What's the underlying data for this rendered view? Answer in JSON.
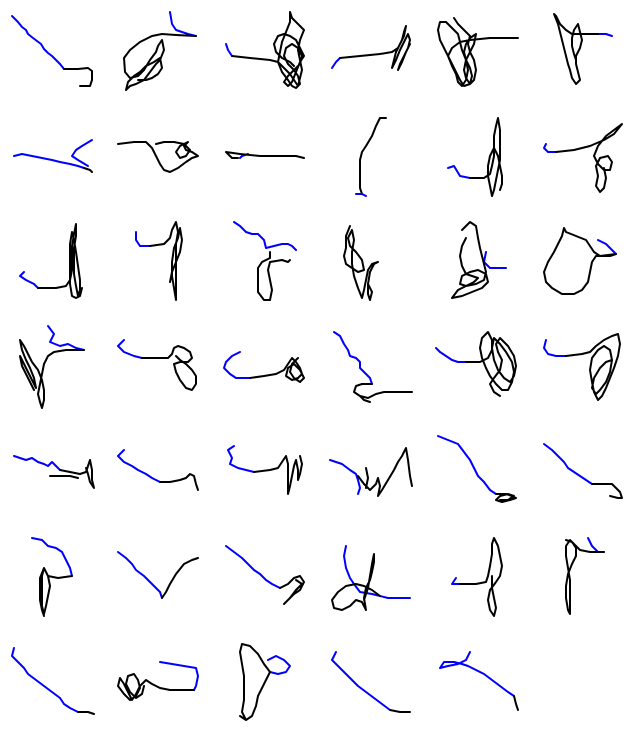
{
  "grid": {
    "rows": 7,
    "cols": 6,
    "count": 41
  },
  "colors": {
    "background": "#ffffff",
    "stroke_primary": "#000000",
    "stroke_secondary": "#0000ff"
  },
  "stroke_width": 2
}
